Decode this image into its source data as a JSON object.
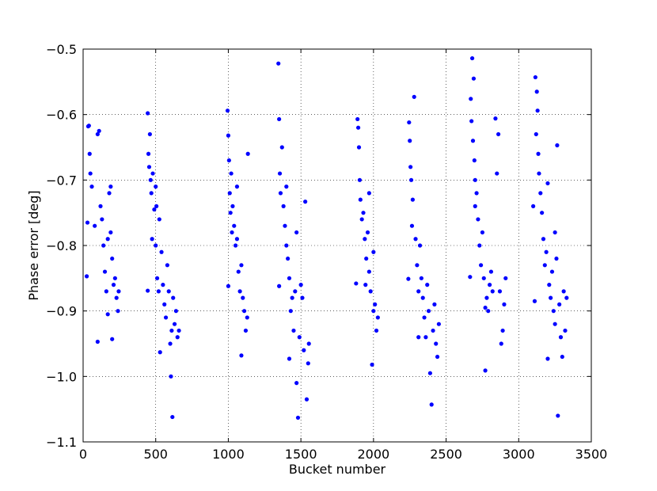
{
  "chart_data": {
    "type": "scatter",
    "xlabel": "Bucket number",
    "ylabel": "Phase error [deg]",
    "color": "#0000ff",
    "grid": true,
    "xlim": [
      0,
      3500
    ],
    "xticks": [
      0,
      500,
      1000,
      1500,
      2000,
      2500,
      3000,
      3500
    ],
    "ylim": [
      -1.1,
      -0.5
    ],
    "yticks": [
      {
        "value": -1.1,
        "label": "−1.1"
      },
      {
        "value": -1.0,
        "label": "−1.0"
      },
      {
        "value": -0.9,
        "label": "−0.9"
      },
      {
        "value": -0.8,
        "label": "−0.8"
      },
      {
        "value": -0.7,
        "label": "−0.7"
      },
      {
        "value": -0.6,
        "label": "−0.6"
      },
      {
        "value": -0.5,
        "label": "−0.5"
      }
    ],
    "x": [
      25,
      35,
      40,
      45,
      50,
      60,
      80,
      100,
      110,
      120,
      130,
      140,
      150,
      160,
      170,
      180,
      190,
      200,
      210,
      220,
      230,
      240,
      245,
      100,
      30,
      200,
      190,
      170,
      445,
      450,
      455,
      460,
      465,
      470,
      475,
      480,
      490,
      500,
      505,
      510,
      520,
      530,
      540,
      550,
      560,
      570,
      580,
      590,
      600,
      605,
      610,
      615,
      620,
      630,
      640,
      650,
      660,
      445,
      525,
      500,
      995,
      1000,
      1005,
      1010,
      1015,
      1000,
      1020,
      1030,
      1040,
      1050,
      1060,
      1070,
      1080,
      1090,
      1100,
      1110,
      1120,
      1130,
      1135,
      1090,
      1025,
      1060,
      1345,
      1350,
      1355,
      1360,
      1370,
      1380,
      1390,
      1400,
      1410,
      1420,
      1430,
      1440,
      1450,
      1460,
      1470,
      1480,
      1490,
      1500,
      1510,
      1520,
      1530,
      1540,
      1550,
      1555,
      1350,
      1420,
      1470,
      1400,
      1890,
      1895,
      1900,
      1905,
      1910,
      1920,
      1930,
      1940,
      1880,
      1950,
      1960,
      1970,
      1980,
      1990,
      2000,
      2010,
      2020,
      2030,
      1945,
      1970,
      2000,
      2245,
      2250,
      2255,
      2260,
      2270,
      2280,
      2240,
      2290,
      2300,
      2310,
      2320,
      2330,
      2340,
      2350,
      2360,
      2370,
      2380,
      2390,
      2400,
      2410,
      2420,
      2430,
      2440,
      2450,
      2310,
      2265,
      2680,
      2690,
      2670,
      2675,
      2685,
      2695,
      2700,
      2710,
      2720,
      2665,
      2730,
      2740,
      2750,
      2760,
      2770,
      2780,
      2790,
      2800,
      2810,
      2820,
      2840,
      2850,
      2860,
      2870,
      2880,
      2890,
      2900,
      2910,
      2770,
      2700,
      3115,
      3125,
      3130,
      3120,
      3135,
      3140,
      3100,
      3150,
      3160,
      3170,
      3180,
      3190,
      3200,
      3200,
      3110,
      3210,
      3220,
      3230,
      3240,
      3250,
      3260,
      3270,
      3265,
      3280,
      3290,
      3300,
      3310,
      3320,
      3330,
      3250
    ],
    "values": [
      -0.847,
      -0.618,
      -0.617,
      -0.66,
      -0.69,
      -0.71,
      -0.77,
      -0.947,
      -0.625,
      -0.74,
      -0.76,
      -0.8,
      -0.84,
      -0.87,
      -0.905,
      -0.72,
      -0.78,
      -0.82,
      -0.86,
      -0.85,
      -0.88,
      -0.9,
      -0.87,
      -0.63,
      -0.765,
      -0.943,
      -0.71,
      -0.79,
      -0.598,
      -0.66,
      -0.68,
      -0.63,
      -0.7,
      -0.72,
      -0.79,
      -0.69,
      -0.745,
      -0.8,
      -0.74,
      -0.85,
      -0.87,
      -0.963,
      -0.81,
      -0.86,
      -0.89,
      -0.91,
      -0.83,
      -0.87,
      -0.95,
      -1.0,
      -0.93,
      -1.062,
      -0.88,
      -0.92,
      -0.9,
      -0.94,
      -0.93,
      -0.869,
      -0.76,
      -0.71,
      -0.594,
      -0.632,
      -0.67,
      -0.72,
      -0.75,
      -0.862,
      -0.69,
      -0.74,
      -0.77,
      -0.8,
      -0.79,
      -0.84,
      -0.87,
      -0.83,
      -0.88,
      -0.9,
      -0.93,
      -0.91,
      -0.66,
      -0.968,
      -0.78,
      -0.71,
      -0.522,
      -0.607,
      -0.69,
      -0.72,
      -0.65,
      -0.74,
      -0.77,
      -0.8,
      -0.82,
      -0.85,
      -0.9,
      -0.88,
      -0.93,
      -0.87,
      -1.01,
      -1.063,
      -0.94,
      -0.86,
      -0.88,
      -0.96,
      -0.733,
      -1.035,
      -0.98,
      -0.95,
      -0.862,
      -0.973,
      -0.78,
      -0.71,
      -0.607,
      -0.62,
      -0.65,
      -0.7,
      -0.73,
      -0.76,
      -0.75,
      -0.79,
      -0.858,
      -0.82,
      -0.78,
      -0.84,
      -0.87,
      -0.982,
      -0.9,
      -0.89,
      -0.93,
      -0.91,
      -0.86,
      -0.72,
      -0.81,
      -0.612,
      -0.64,
      -0.68,
      -0.7,
      -0.73,
      -0.573,
      -0.851,
      -0.79,
      -0.83,
      -0.87,
      -0.8,
      -0.85,
      -0.88,
      -0.91,
      -0.94,
      -0.86,
      -0.9,
      -0.995,
      -1.043,
      -0.93,
      -0.89,
      -0.95,
      -0.97,
      -0.92,
      -0.94,
      -0.77,
      -0.514,
      -0.545,
      -0.576,
      -0.61,
      -0.64,
      -0.67,
      -0.7,
      -0.72,
      -0.76,
      -0.848,
      -0.8,
      -0.83,
      -0.78,
      -0.85,
      -0.991,
      -0.88,
      -0.9,
      -0.86,
      -0.84,
      -0.87,
      -0.606,
      -0.69,
      -0.63,
      -0.87,
      -0.95,
      -0.93,
      -0.89,
      -0.85,
      -0.895,
      -0.74,
      -0.543,
      -0.565,
      -0.594,
      -0.63,
      -0.66,
      -0.69,
      -0.74,
      -0.72,
      -0.75,
      -0.79,
      -0.83,
      -0.81,
      -0.705,
      -0.973,
      -0.885,
      -0.86,
      -0.88,
      -0.84,
      -0.9,
      -0.92,
      -0.82,
      -1.06,
      -0.647,
      -0.89,
      -0.94,
      -0.97,
      -0.87,
      -0.93,
      -0.88,
      -0.78
    ]
  }
}
